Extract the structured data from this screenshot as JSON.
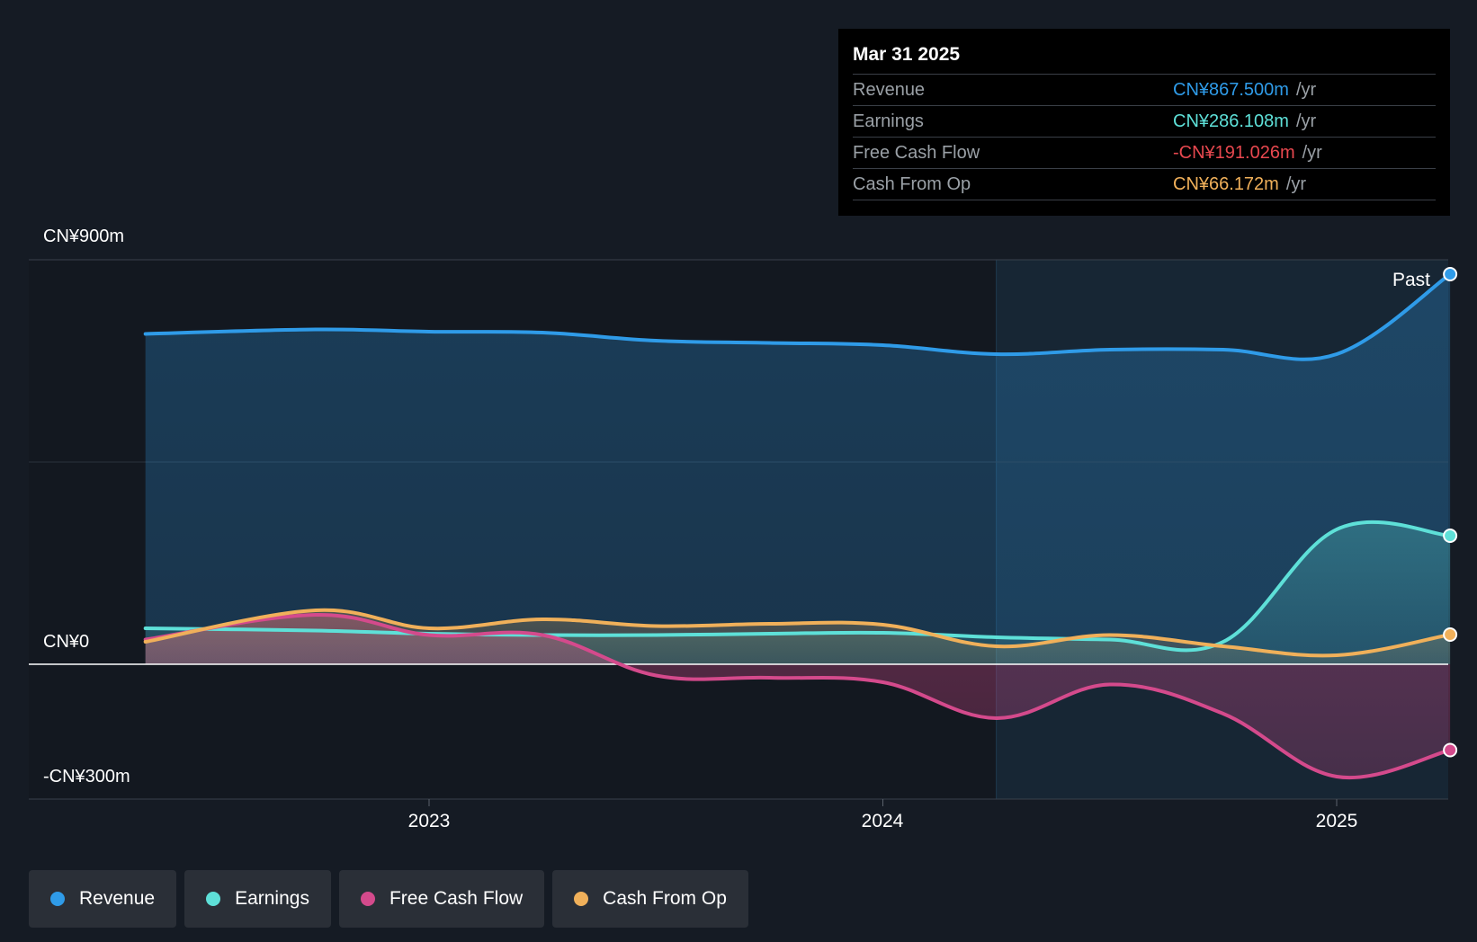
{
  "tooltip": {
    "date": "Mar 31 2025",
    "rows": [
      {
        "label": "Revenue",
        "value": "CN¥867.500m",
        "unit": "/yr",
        "color": "#2f9be8"
      },
      {
        "label": "Earnings",
        "value": "CN¥286.108m",
        "unit": "/yr",
        "color": "#5ee0d8"
      },
      {
        "label": "Free Cash Flow",
        "value": "-CN¥191.026m",
        "unit": "/yr",
        "color": "#e8484f"
      },
      {
        "label": "Cash From Op",
        "value": "CN¥66.172m",
        "unit": "/yr",
        "color": "#f0b05a"
      }
    ]
  },
  "past_label": "Past",
  "legend": [
    {
      "label": "Revenue",
      "color": "#2f9be8"
    },
    {
      "label": "Earnings",
      "color": "#5ee0d8"
    },
    {
      "label": "Free Cash Flow",
      "color": "#d44a8c"
    },
    {
      "label": "Cash From Op",
      "color": "#f0b05a"
    }
  ],
  "chart_data": {
    "type": "area",
    "ylim": [
      -300,
      900
    ],
    "y_ticks": [
      "CN¥900m",
      "CN¥0",
      "-CN¥300m"
    ],
    "x_ticks": [
      "2023",
      "2024",
      "2025"
    ],
    "xlim": [
      2022.25,
      2025.25
    ],
    "forecast_start": 2024.25,
    "series": [
      {
        "name": "Revenue",
        "color": "#2f9be8",
        "x": [
          2022.375,
          2022.75,
          2023.0,
          2023.25,
          2023.5,
          2023.75,
          2024.0,
          2024.25,
          2024.5,
          2024.75,
          2025.0,
          2025.25
        ],
        "y": [
          735,
          745,
          740,
          738,
          720,
          715,
          710,
          690,
          700,
          700,
          690,
          868
        ]
      },
      {
        "name": "Earnings",
        "color": "#5ee0d8",
        "x": [
          2022.375,
          2022.75,
          2023.0,
          2023.25,
          2023.5,
          2023.75,
          2024.0,
          2024.25,
          2024.5,
          2024.75,
          2025.0,
          2025.25
        ],
        "y": [
          80,
          75,
          68,
          65,
          65,
          68,
          70,
          60,
          55,
          50,
          300,
          286
        ]
      },
      {
        "name": "Free Cash Flow",
        "color": "#d44a8c",
        "x": [
          2022.375,
          2022.75,
          2023.0,
          2023.25,
          2023.5,
          2023.75,
          2024.0,
          2024.25,
          2024.5,
          2024.75,
          2025.0,
          2025.25
        ],
        "y": [
          55,
          110,
          65,
          65,
          -25,
          -30,
          -40,
          -120,
          -45,
          -110,
          -250,
          -191
        ]
      },
      {
        "name": "Cash From Op",
        "color": "#f0b05a",
        "x": [
          2022.375,
          2022.75,
          2023.0,
          2023.25,
          2023.5,
          2023.75,
          2024.0,
          2024.25,
          2024.5,
          2024.75,
          2025.0,
          2025.25
        ],
        "y": [
          50,
          120,
          80,
          100,
          85,
          90,
          88,
          40,
          65,
          40,
          20,
          66
        ]
      }
    ]
  }
}
